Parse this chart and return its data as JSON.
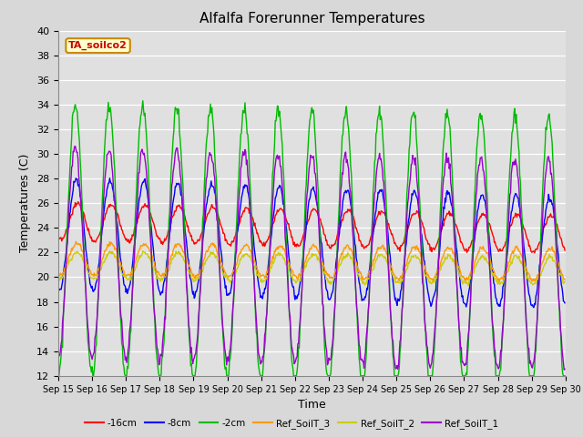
{
  "title": "Alfalfa Forerunner Temperatures",
  "xlabel": "Time",
  "ylabel": "Temperatures (C)",
  "ylim": [
    12,
    40
  ],
  "yticks": [
    12,
    14,
    16,
    18,
    20,
    22,
    24,
    26,
    28,
    30,
    32,
    34,
    36,
    38,
    40
  ],
  "date_start": 15,
  "date_end": 30,
  "series_colors": {
    "-16cm": "#ff0000",
    "-8cm": "#0000ff",
    "-2cm": "#00bb00",
    "Ref_SoilT_3": "#ff9900",
    "Ref_SoilT_2": "#cccc00",
    "Ref_SoilT_1": "#9900cc"
  },
  "legend_label": "TA_soilco2",
  "fig_bg_color": "#d8d8d8",
  "plot_bg_color": "#e0e0e0",
  "grid_color": "#ffffff"
}
